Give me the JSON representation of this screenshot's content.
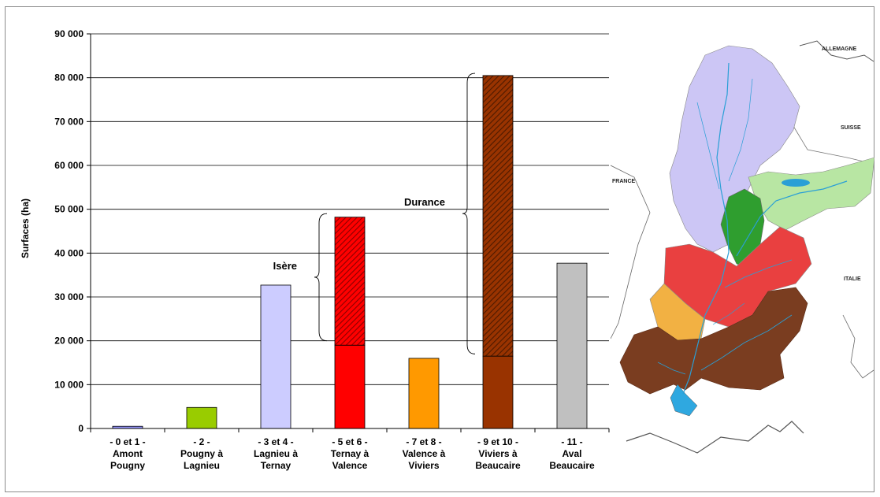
{
  "chart_data": {
    "type": "bar",
    "ylabel": "Surfaces (ha)",
    "ylim": [
      0,
      90000
    ],
    "yticks": [
      0,
      10000,
      20000,
      30000,
      40000,
      50000,
      60000,
      70000,
      80000,
      90000
    ],
    "ytick_labels": [
      "0",
      "10 000",
      "20 000",
      "30 000",
      "40 000",
      "50 000",
      "60 000",
      "70 000",
      "80 000",
      "90 000"
    ],
    "grid": true,
    "categories": [
      [
        "- 0 et 1 -",
        "Amont",
        "Pougny"
      ],
      [
        "- 2 -",
        "Pougny à",
        "Lagnieu"
      ],
      [
        "- 3 et 4 -",
        "Lagnieu à",
        "Ternay"
      ],
      [
        "- 5 et 6 -",
        "Ternay à",
        "Valence"
      ],
      [
        "- 7 et 8 -",
        "Valence à",
        "Viviers"
      ],
      [
        "- 9 et 10 -",
        "Viviers à",
        "Beaucaire"
      ],
      [
        "- 11 -",
        "Aval",
        "Beaucaire"
      ]
    ],
    "bars": [
      {
        "base": 500,
        "extra": 0,
        "color": "#9999ff",
        "hatch_color": ""
      },
      {
        "base": 4800,
        "extra": 0,
        "color": "#99cc00",
        "hatch_color": ""
      },
      {
        "base": 32700,
        "extra": 0,
        "color": "#ccccff",
        "hatch_color": ""
      },
      {
        "base": 19000,
        "extra": 29200,
        "color": "#ff0000",
        "hatch_color": "#cc0000"
      },
      {
        "base": 16000,
        "extra": 0,
        "color": "#ff9900",
        "hatch_color": ""
      },
      {
        "base": 16500,
        "extra": 64000,
        "color": "#993300",
        "hatch_color": "#7a2900"
      },
      {
        "base": 37700,
        "extra": 0,
        "color": "#c0c0c0",
        "hatch_color": ""
      }
    ],
    "annotations": [
      {
        "text": "Isère",
        "bar_index": 3,
        "from": 20000,
        "to": 49000
      },
      {
        "text": "Durance",
        "bar_index": 5,
        "from": 17000,
        "to": 81000
      }
    ]
  },
  "map": {
    "labels": {
      "allemagne": "ALLEMAGNE",
      "suisse": "SUISSE",
      "france": "FRANCE",
      "italie": "ITALIE"
    }
  }
}
